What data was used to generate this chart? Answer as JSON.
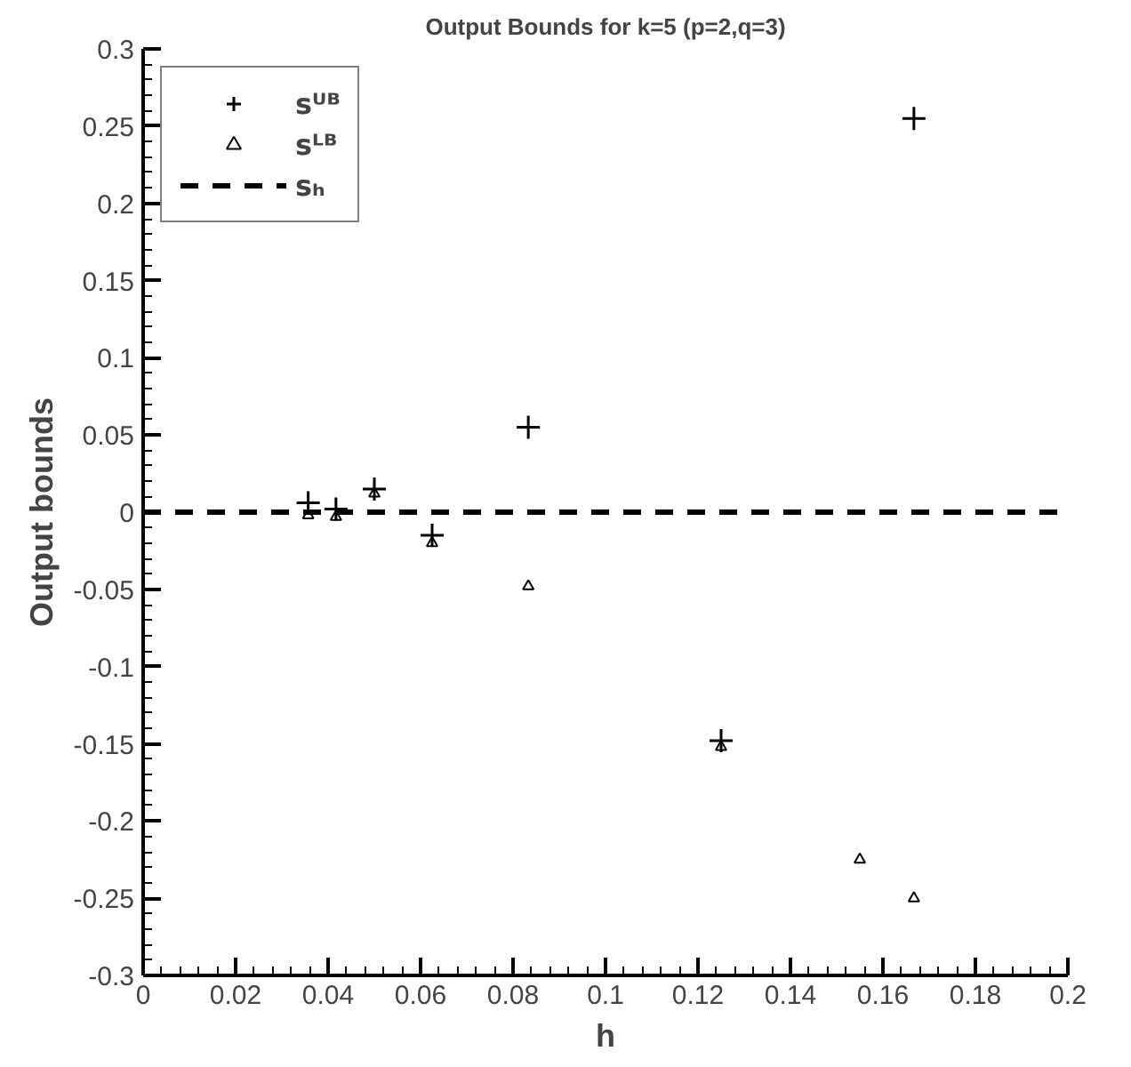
{
  "chart_data": {
    "type": "scatter",
    "title": "Output Bounds for k=5 (p=2,q=3)",
    "xlabel": "h",
    "ylabel": "Output bounds",
    "series": [
      {
        "name": "sᵁᴮ",
        "color": "#000000",
        "marker": "cross",
        "x": [
          0.0357,
          0.0417,
          0.05,
          0.0625,
          0.0833,
          0.125,
          0.1667
        ],
        "values": [
          0.006,
          0.002,
          0.015,
          -0.015,
          0.055,
          -0.148,
          0.255
        ]
      },
      {
        "name": "sᴸᴮ",
        "color": "#000000",
        "marker": "triangle",
        "x": [
          0.0357,
          0.0417,
          0.05,
          0.0625,
          0.0833,
          0.125,
          0.155,
          0.1667
        ],
        "values": [
          -0.002,
          -0.003,
          0.012,
          -0.02,
          -0.048,
          -0.152,
          -0.225,
          -0.25
        ]
      },
      {
        "name": "sₕ",
        "color": "#000000",
        "type": "line",
        "line_style": "dashed",
        "x": [
          0,
          0.2
        ],
        "values": [
          0,
          0
        ]
      }
    ],
    "xlim": [
      0,
      0.2
    ],
    "ylim": [
      -0.3,
      0.3
    ],
    "xticks": [
      0,
      0.02,
      0.04,
      0.06,
      0.08,
      0.1,
      0.12,
      0.14,
      0.16,
      0.18,
      0.2
    ],
    "yticks": [
      -0.3,
      -0.25,
      -0.2,
      -0.15,
      -0.1,
      -0.05,
      0,
      0.05,
      0.1,
      0.15,
      0.2,
      0.25,
      0.3
    ],
    "grid": false,
    "legend": "top left"
  }
}
